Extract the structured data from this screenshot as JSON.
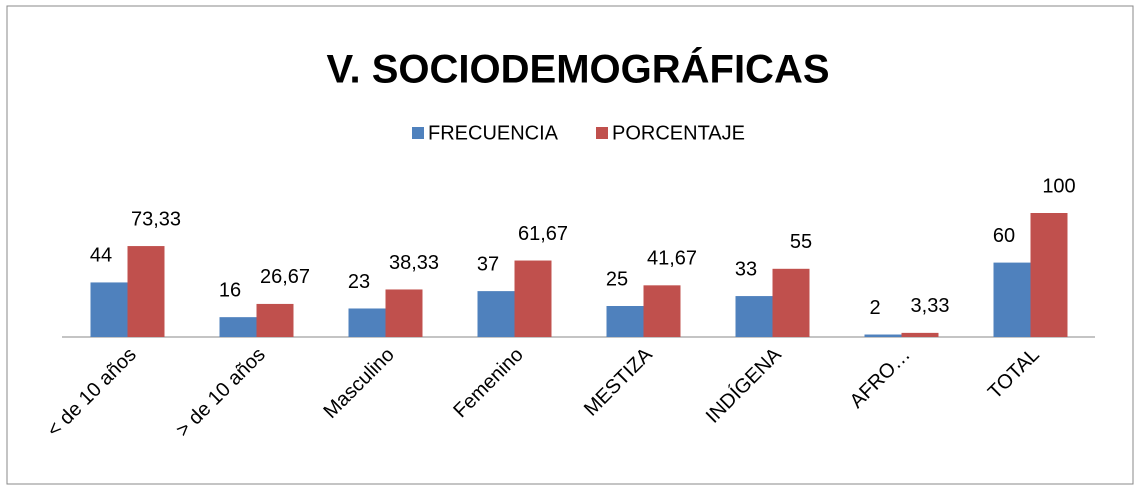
{
  "chart_data": {
    "type": "bar",
    "title": "V. SOCIODEMOGRÁFICAS",
    "categories": [
      "< de 10 años",
      "> de 10 años",
      "Masculino",
      "Femenino",
      "MESTIZA",
      "INDÍGENA",
      "AFRO…",
      "TOTAL"
    ],
    "series": [
      {
        "name": "FRECUENCIA",
        "color": "#4f81bd",
        "values": [
          44,
          16,
          23,
          37,
          25,
          33,
          2,
          60
        ]
      },
      {
        "name": "PORCENTAJE",
        "color": "#c0504d",
        "values": [
          73.33,
          26.67,
          38.33,
          61.67,
          41.67,
          55,
          3.33,
          100
        ],
        "value_labels": [
          "73,33",
          "26,67",
          "38,33",
          "61,67",
          "41,67",
          "55",
          "3,33",
          "100"
        ]
      }
    ],
    "ylim": [
      0,
      100
    ],
    "legend": "top"
  }
}
